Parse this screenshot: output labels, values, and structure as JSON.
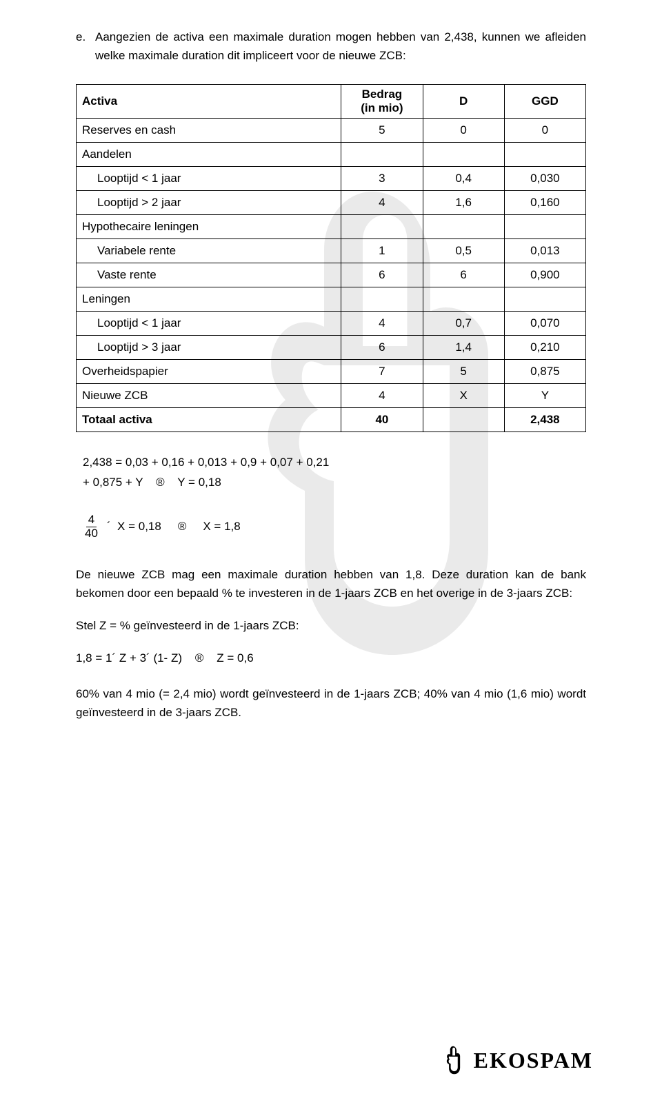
{
  "intro": {
    "letter": "e.",
    "text": "Aangezien de activa een maximale duration mogen hebben van 2,438, kunnen we afleiden welke maximale duration dit impliceert voor de nieuwe ZCB:"
  },
  "table": {
    "headers": [
      "Activa",
      "Bedrag\n(in mio)",
      "D",
      "GGD"
    ],
    "rows": [
      {
        "label": "Reserves en cash",
        "indent": false,
        "bold": false,
        "c1": "5",
        "c2": "0",
        "c3": "0"
      },
      {
        "label": "Aandelen",
        "indent": false,
        "bold": false,
        "c1": "",
        "c2": "",
        "c3": ""
      },
      {
        "label": "Looptijd < 1 jaar",
        "indent": true,
        "bold": false,
        "c1": "3",
        "c2": "0,4",
        "c3": "0,030"
      },
      {
        "label": "Looptijd > 2 jaar",
        "indent": true,
        "bold": false,
        "c1": "4",
        "c2": "1,6",
        "c3": "0,160"
      },
      {
        "label": "Hypothecaire leningen",
        "indent": false,
        "bold": false,
        "c1": "",
        "c2": "",
        "c3": ""
      },
      {
        "label": "Variabele rente",
        "indent": true,
        "bold": false,
        "c1": "1",
        "c2": "0,5",
        "c3": "0,013"
      },
      {
        "label": "Vaste rente",
        "indent": true,
        "bold": false,
        "c1": "6",
        "c2": "6",
        "c3": "0,900"
      },
      {
        "label": "Leningen",
        "indent": false,
        "bold": false,
        "c1": "",
        "c2": "",
        "c3": ""
      },
      {
        "label": "Looptijd < 1 jaar",
        "indent": true,
        "bold": false,
        "c1": "4",
        "c2": "0,7",
        "c3": "0,070"
      },
      {
        "label": "Looptijd > 3 jaar",
        "indent": true,
        "bold": false,
        "c1": "6",
        "c2": "1,4",
        "c3": "0,210"
      },
      {
        "label": "Overheidspapier",
        "indent": false,
        "bold": false,
        "c1": "7",
        "c2": "5",
        "c3": "0,875"
      },
      {
        "label": "Nieuwe ZCB",
        "indent": false,
        "bold": false,
        "c1": "4",
        "c2": "X",
        "c3": "Y"
      },
      {
        "label": "Totaal activa",
        "indent": false,
        "bold": true,
        "c1": "40",
        "c2": "",
        "c3": "2,438"
      }
    ]
  },
  "eq1_line1": "2,438 = 0,03 + 0,16 + 0,013 + 0,9 + 0,07 + 0,21",
  "eq1_line2": "+ 0,875 + Y    ®    Y = 0,18",
  "eq2": {
    "frac_num": "4",
    "frac_den": "40",
    "left": "´  X = 0,18",
    "arrow": "®",
    "right": "X = 1,8"
  },
  "para1": "De nieuwe ZCB mag een maximale duration hebben van 1,8. Deze duration kan de bank bekomen door een bepaald % te investeren in de 1-jaars ZCB en het overige in de 3-jaars ZCB:",
  "para2": "Stel Z = % geïnvesteerd in de 1-jaars ZCB:",
  "eq3": "1,8 = 1´ Z + 3´ (1- Z)    ®    Z = 0,6",
  "para3": "60% van 4 mio (= 2,4 mio) wordt geïnvesteerd in de 1-jaars ZCB; 40% van 4 mio (1,6 mio) wordt geïnvesteerd in de 3-jaars ZCB.",
  "logo_text": "EKOSPAM"
}
